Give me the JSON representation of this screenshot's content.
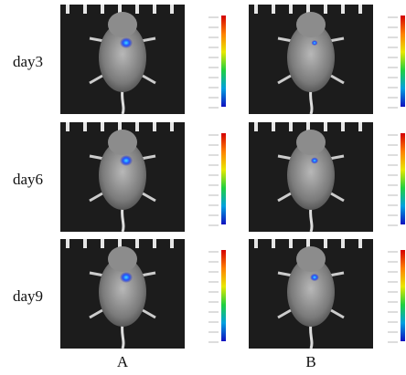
{
  "rows": [
    {
      "label": "day3"
    },
    {
      "label": "day6"
    },
    {
      "label": "day9"
    }
  ],
  "columns": [
    {
      "label": "A"
    },
    {
      "label": "B"
    }
  ]
}
